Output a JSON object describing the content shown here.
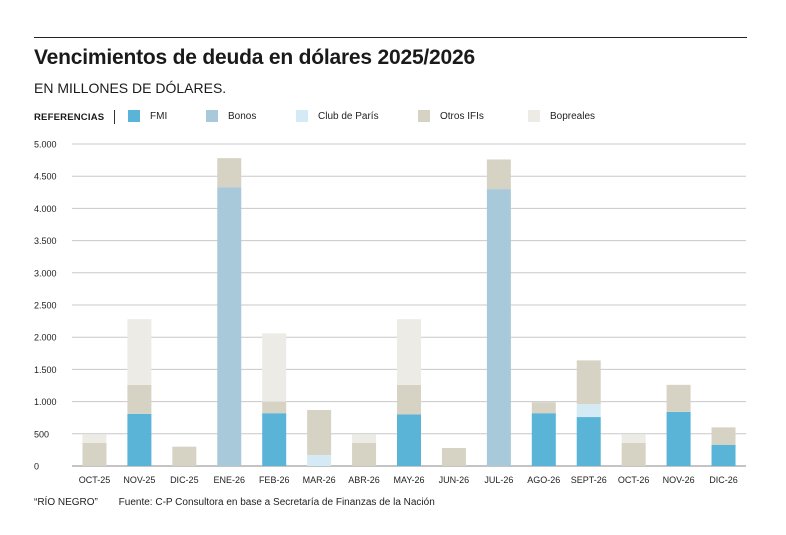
{
  "header": {
    "title": "Vencimientos de deuda en dólares 2025/2026",
    "subtitle": "EN MILLONES DE DÓLARES."
  },
  "legend": {
    "label": "REFERENCIAS",
    "items": [
      {
        "name": "FMI",
        "color": "#5ab4d8"
      },
      {
        "name": "Bonos",
        "color": "#a8c9da"
      },
      {
        "name": "Club de París",
        "color": "#d4ebf5"
      },
      {
        "name": "Otros IFIs",
        "color": "#d6d3c4"
      },
      {
        "name": "Bopreales",
        "color": "#ecebe6"
      }
    ]
  },
  "footer": {
    "credit": "“RÍO NEGRO”",
    "source": "Fuente: C-P Consultora en base a Secretaría de Finanzas de la Nación"
  },
  "chart_data": {
    "type": "bar",
    "stacked": true,
    "title": "Vencimientos de deuda en dólares 2025/2026",
    "subtitle": "EN MILLONES DE DÓLARES.",
    "xlabel": "",
    "ylabel": "",
    "ylim": [
      0,
      5000
    ],
    "yticks": [
      0,
      500,
      1000,
      1500,
      2000,
      2500,
      3000,
      3500,
      4000,
      4500,
      5000
    ],
    "ytick_labels": [
      "0",
      "500",
      "1.000",
      "1.500",
      "2.000",
      "2.500",
      "3.000",
      "3.500",
      "4.000",
      "4.500",
      "5.000"
    ],
    "grid": true,
    "legend_position": "top-left",
    "categories": [
      "OCT-25",
      "NOV-25",
      "DIC-25",
      "ENE-26",
      "FEB-26",
      "MAR-26",
      "ABR-26",
      "MAY-26",
      "JUN-26",
      "JUL-26",
      "AGO-26",
      "SEPT-26",
      "OCT-26",
      "NOV-26",
      "DIC-26"
    ],
    "series": [
      {
        "name": "FMI",
        "color": "#5ab4d8",
        "values": [
          0,
          810,
          0,
          0,
          820,
          0,
          0,
          800,
          0,
          0,
          820,
          760,
          0,
          840,
          330
        ]
      },
      {
        "name": "Bonos",
        "color": "#a8c9da",
        "values": [
          0,
          0,
          0,
          4330,
          0,
          0,
          0,
          0,
          0,
          4300,
          0,
          0,
          0,
          0,
          0
        ]
      },
      {
        "name": "Club de París",
        "color": "#d4ebf5",
        "values": [
          0,
          0,
          0,
          0,
          0,
          170,
          0,
          0,
          0,
          0,
          0,
          200,
          0,
          0,
          0
        ]
      },
      {
        "name": "Otros IFIs",
        "color": "#d6d3c4",
        "values": [
          360,
          450,
          300,
          450,
          180,
          700,
          360,
          460,
          280,
          460,
          170,
          680,
          360,
          420,
          270
        ]
      },
      {
        "name": "Bopreales",
        "color": "#ecebe6",
        "values": [
          130,
          1020,
          0,
          0,
          1060,
          0,
          130,
          1020,
          0,
          0,
          0,
          0,
          130,
          0,
          0
        ]
      }
    ]
  }
}
